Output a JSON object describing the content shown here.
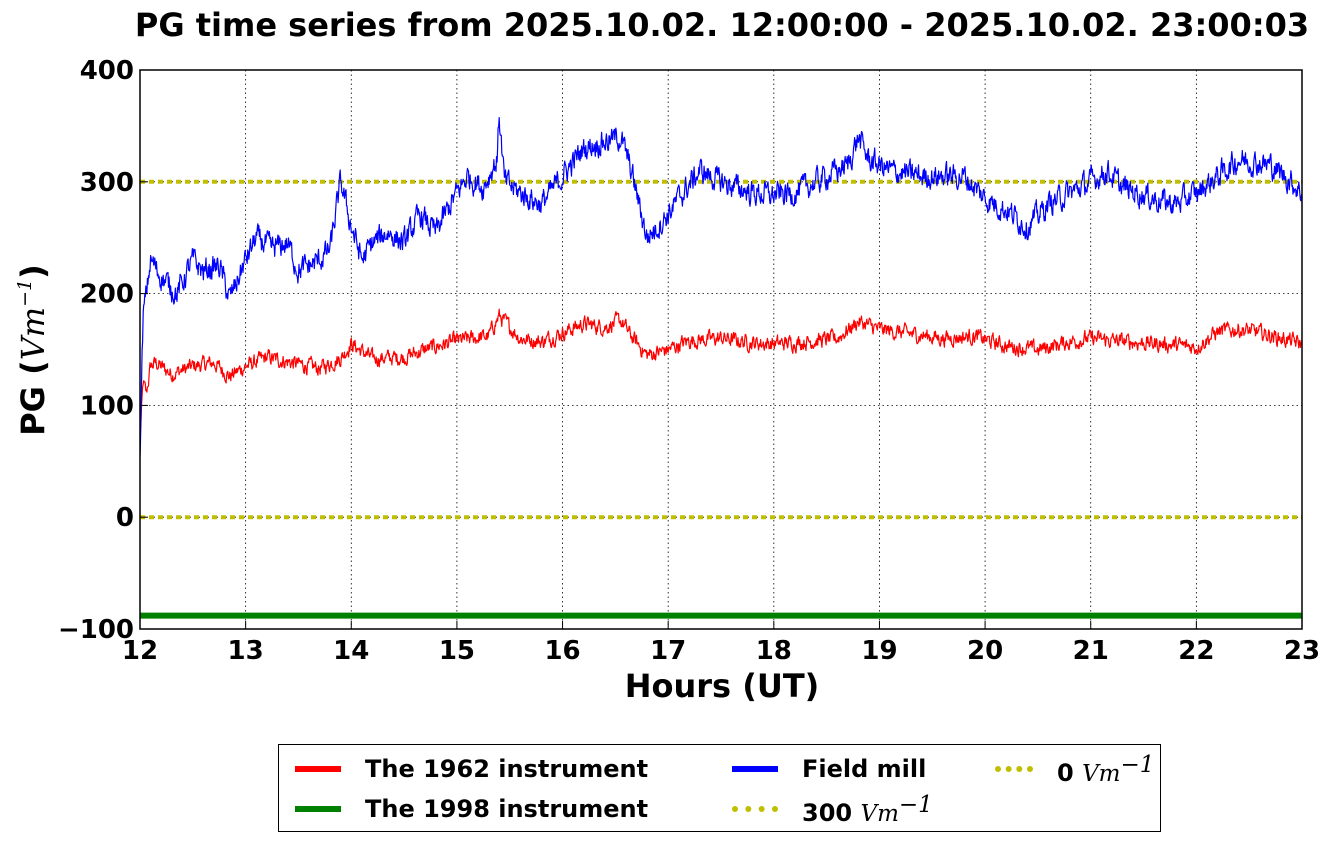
{
  "chart_data": {
    "type": "line",
    "title": "PG time series from 2025.10.02. 12:00:00 - 2025.10.02. 23:00:03",
    "xlabel": "Hours (UT)",
    "ylabel_text": "PG (",
    "ylabel_math": "Vm",
    "ylabel_exp": "−1",
    "ylabel_close": ")",
    "xlim": [
      12,
      23
    ],
    "ylim": [
      -100,
      400
    ],
    "xticks": [
      "12",
      "13",
      "14",
      "15",
      "16",
      "17",
      "18",
      "19",
      "20",
      "21",
      "22",
      "23"
    ],
    "yticks": [
      "−100",
      "0",
      "100",
      "200",
      "300",
      "400"
    ],
    "grid": true,
    "legend_position": "bottom-outside",
    "series": [
      {
        "name": "The 1962 instrument",
        "color": "#ff0000",
        "noise": 7,
        "x": [
          12.0,
          12.03,
          12.06,
          12.1,
          12.15,
          12.3,
          12.5,
          12.7,
          12.85,
          13.0,
          13.2,
          13.5,
          13.7,
          13.9,
          14.0,
          14.2,
          14.5,
          14.7,
          15.0,
          15.3,
          15.4,
          15.6,
          15.8,
          16.0,
          16.2,
          16.4,
          16.55,
          16.65,
          16.8,
          17.0,
          17.2,
          17.5,
          17.8,
          18.0,
          18.3,
          18.6,
          18.8,
          19.0,
          19.3,
          19.6,
          19.9,
          20.2,
          20.5,
          20.8,
          21.0,
          21.2,
          21.5,
          21.8,
          22.0,
          22.2,
          22.4,
          22.6,
          22.8,
          23.0
        ],
        "y": [
          70,
          120,
          110,
          135,
          138,
          128,
          135,
          138,
          126,
          135,
          143,
          137,
          133,
          142,
          155,
          142,
          143,
          150,
          158,
          162,
          180,
          160,
          157,
          165,
          173,
          170,
          176,
          162,
          145,
          150,
          158,
          160,
          156,
          155,
          157,
          160,
          175,
          168,
          164,
          160,
          162,
          153,
          150,
          157,
          160,
          158,
          156,
          154,
          152,
          166,
          168,
          165,
          160,
          155
        ]
      },
      {
        "name": "The 1998 instrument",
        "color": "#008000",
        "noise": 0,
        "x": [
          12.0,
          23.0
        ],
        "y": [
          -88,
          -88
        ]
      },
      {
        "name": "Field mill",
        "color": "#0000ff",
        "noise": 11,
        "x": [
          12.0,
          12.03,
          12.06,
          12.1,
          12.2,
          12.35,
          12.5,
          12.6,
          12.75,
          12.85,
          13.0,
          13.1,
          13.25,
          13.4,
          13.5,
          13.7,
          13.8,
          13.9,
          14.0,
          14.1,
          14.2,
          14.35,
          14.5,
          14.65,
          14.8,
          15.0,
          15.1,
          15.25,
          15.38,
          15.4,
          15.45,
          15.6,
          15.8,
          16.0,
          16.2,
          16.35,
          16.55,
          16.65,
          16.8,
          16.95,
          17.1,
          17.3,
          17.5,
          17.8,
          18.0,
          18.2,
          18.5,
          18.7,
          18.8,
          18.9,
          19.1,
          19.4,
          19.8,
          20.0,
          20.2,
          20.4,
          20.6,
          20.8,
          21.0,
          21.15,
          21.3,
          21.6,
          21.8,
          22.0,
          22.2,
          22.4,
          22.7,
          22.9,
          23.0
        ],
        "y": [
          60,
          180,
          200,
          230,
          215,
          200,
          230,
          220,
          225,
          195,
          230,
          250,
          240,
          245,
          220,
          230,
          240,
          300,
          260,
          230,
          245,
          255,
          245,
          270,
          255,
          290,
          305,
          295,
          320,
          360,
          300,
          290,
          280,
          305,
          330,
          335,
          340,
          310,
          250,
          265,
          285,
          310,
          300,
          290,
          288,
          290,
          305,
          315,
          340,
          320,
          310,
          305,
          305,
          285,
          275,
          260,
          280,
          290,
          300,
          310,
          295,
          285,
          280,
          290,
          305,
          320,
          315,
          300,
          290
        ]
      }
    ],
    "reference_lines": [
      {
        "value": 300,
        "color": "#bfbf00"
      },
      {
        "value": 0,
        "color": "#bfbf00"
      }
    ]
  },
  "legend": {
    "items": [
      {
        "label": "The 1962 instrument",
        "math": "",
        "exp": "",
        "color": "#ff0000",
        "style": "solid"
      },
      {
        "label": "The 1998 instrument",
        "math": "",
        "exp": "",
        "color": "#008000",
        "style": "solid"
      },
      {
        "label": "Field mill",
        "math": "",
        "exp": "",
        "color": "#0000ff",
        "style": "solid"
      },
      {
        "label": "300 ",
        "math": "Vm",
        "exp": "−1",
        "color": "#bfbf00",
        "style": "dotted"
      },
      {
        "label": "0 ",
        "math": "Vm",
        "exp": "−1",
        "color": "#bfbf00",
        "style": "dotted"
      }
    ]
  }
}
